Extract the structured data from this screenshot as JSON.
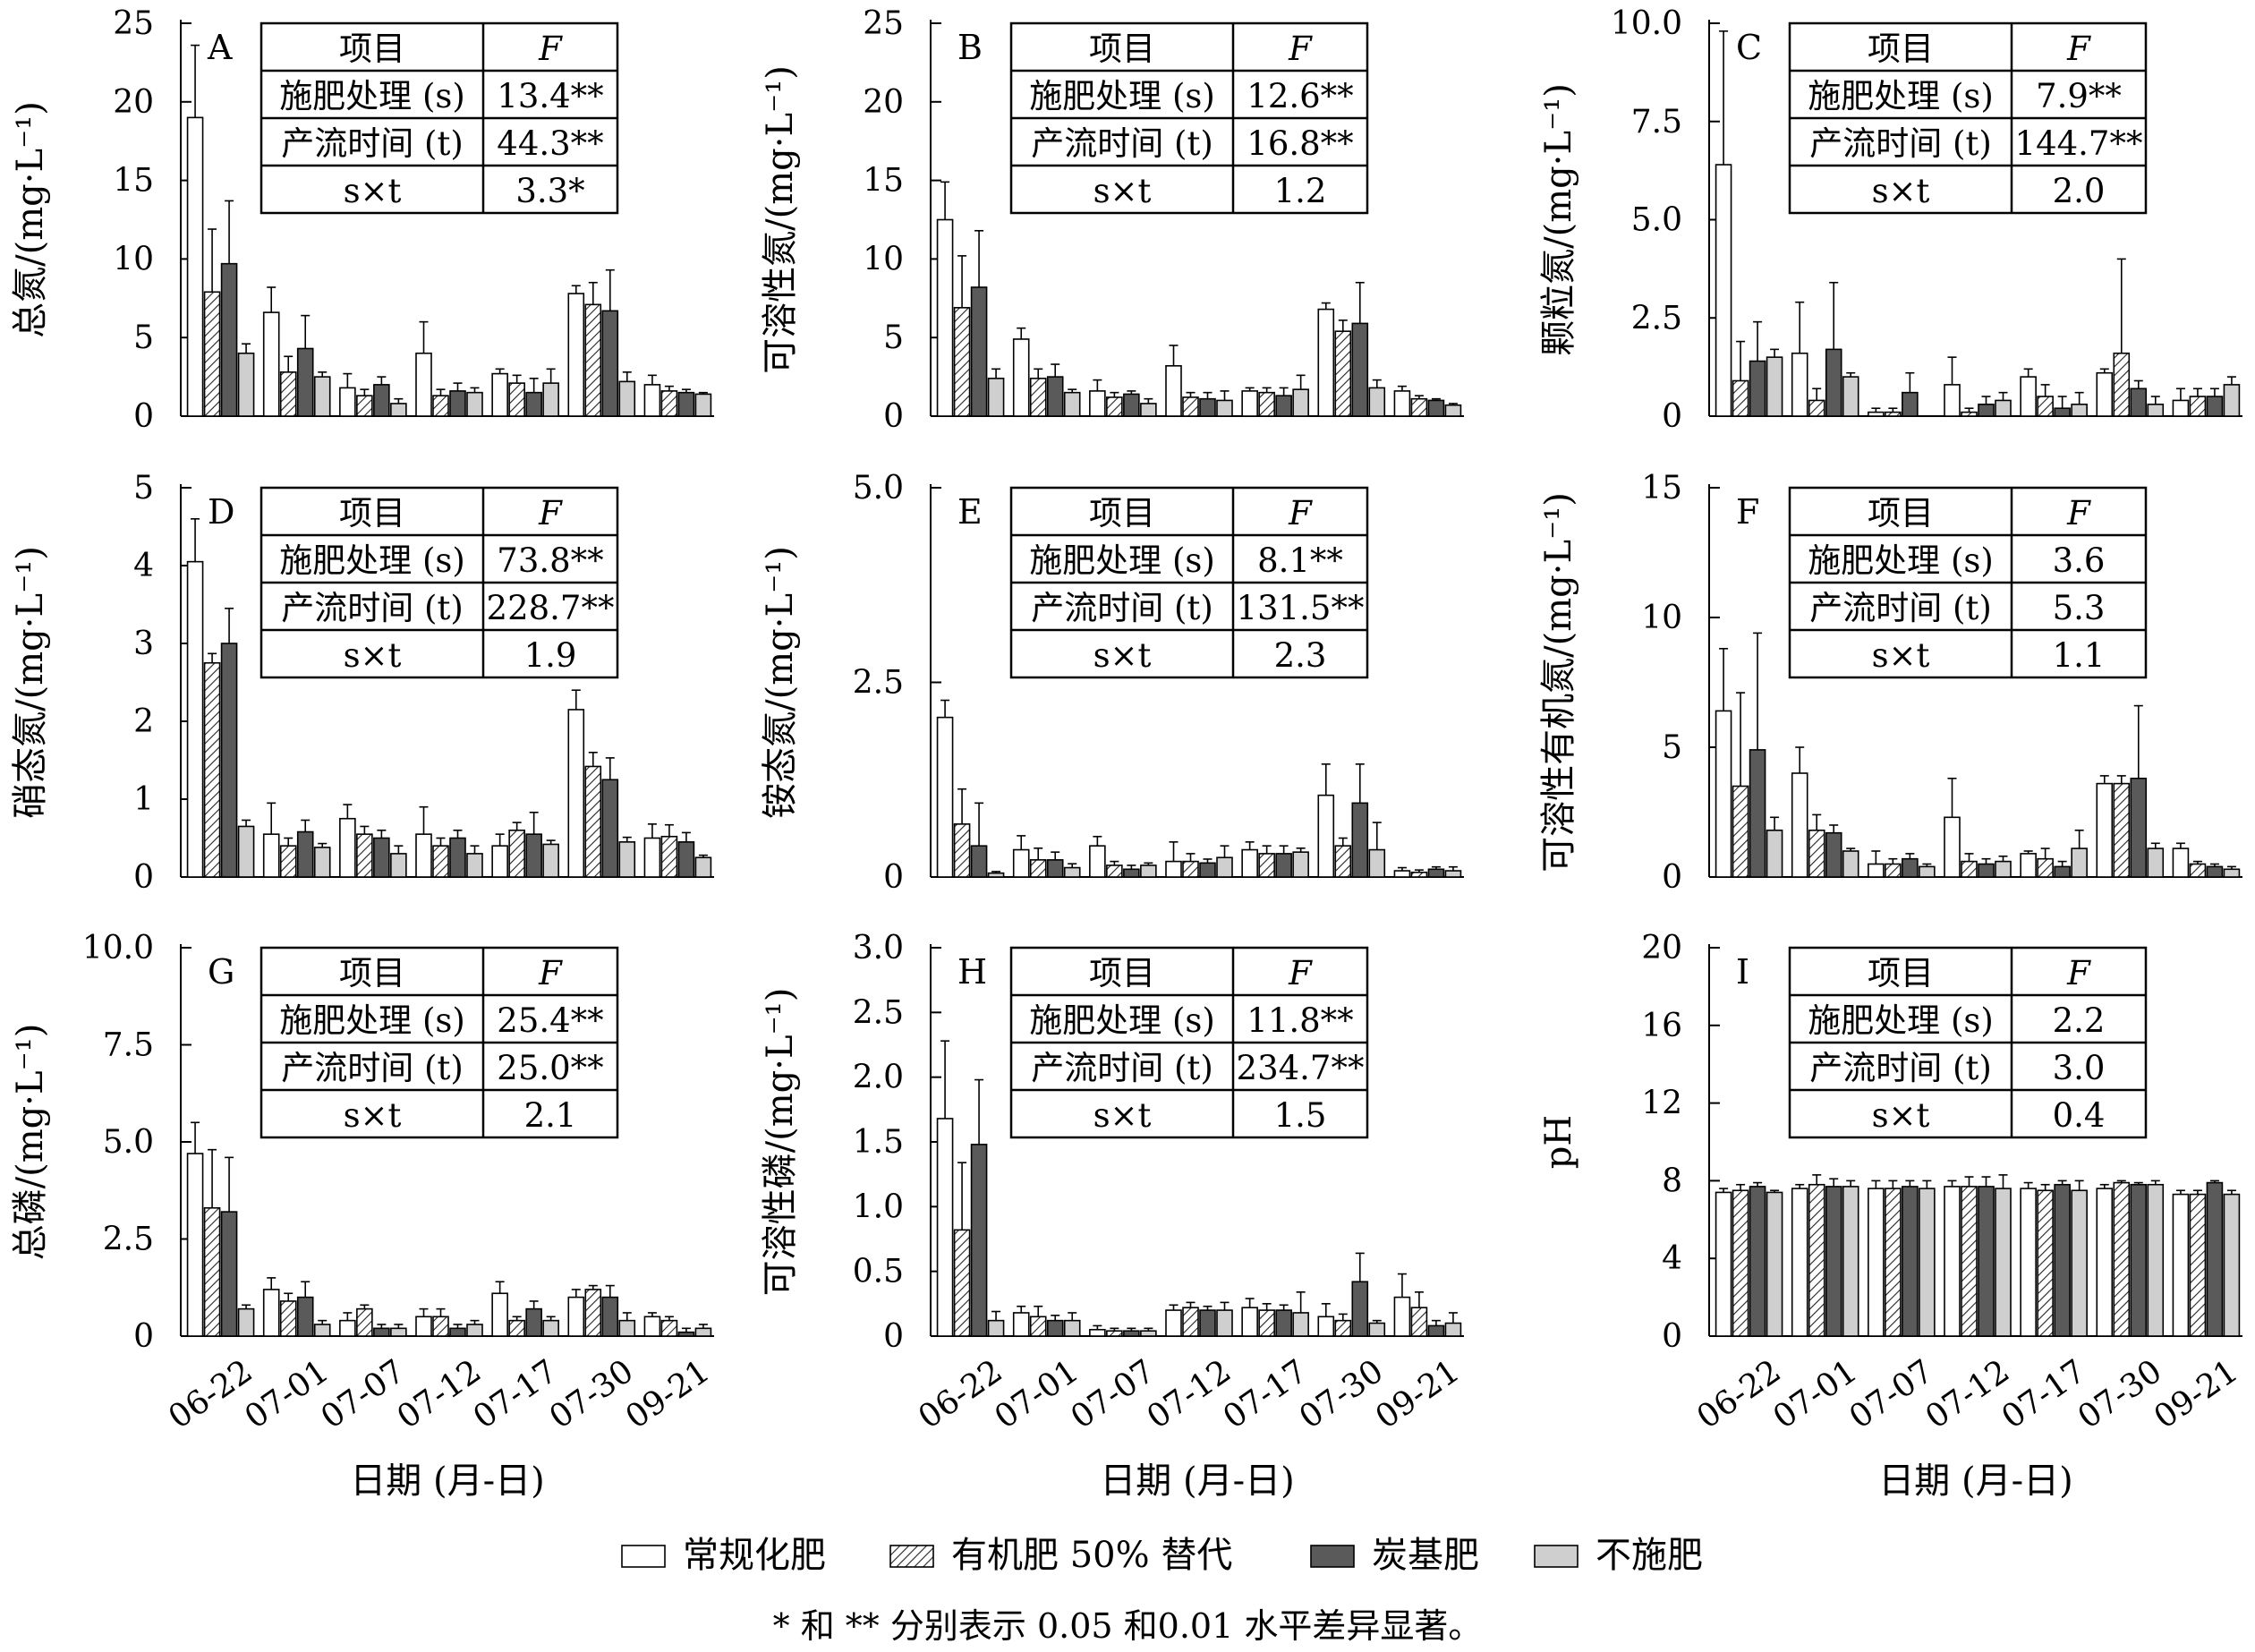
{
  "chart_data": {
    "type": "bar",
    "categories": [
      "06-22",
      "07-01",
      "07-07",
      "07-12",
      "07-17",
      "07-30",
      "09-21"
    ],
    "xlabel": "日期 (月-日)",
    "legend": [
      {
        "name": "常规化肥",
        "fill": "#ffffff",
        "pattern": "none"
      },
      {
        "name": "有机肥 50% 替代",
        "fill": "#ffffff",
        "pattern": "hatch"
      },
      {
        "name": "炭基肥",
        "fill": "#5a5a5a",
        "pattern": "none"
      },
      {
        "name": "不施肥",
        "fill": "#cfcfcf",
        "pattern": "none"
      }
    ],
    "note": "* 和 ** 分别表示 0.05 和0.01 水平差异显著。",
    "table_header": [
      "项目",
      "F"
    ],
    "table_rows": [
      "施肥处理 (s)",
      "产流时间 (t)",
      "s×t"
    ],
    "panels": [
      {
        "letter": "A",
        "ylabel": "总氮/(mg·L⁻¹)",
        "ylim": [
          0,
          25
        ],
        "ticks": [
          "0",
          "5",
          "10",
          "15",
          "20",
          "25"
        ],
        "tickvals": [
          0,
          5,
          10,
          15,
          20,
          25
        ],
        "F": [
          "13.4**",
          "44.3**",
          "3.3*"
        ],
        "series": [
          [
            19.0,
            6.6,
            1.8,
            4.0,
            2.7,
            7.8,
            2.0
          ],
          [
            7.9,
            2.8,
            1.3,
            1.3,
            2.1,
            7.1,
            1.6
          ],
          [
            9.7,
            4.3,
            2.0,
            1.6,
            1.5,
            6.7,
            1.5
          ],
          [
            4.0,
            2.5,
            0.8,
            1.5,
            2.1,
            2.2,
            1.4
          ]
        ],
        "errors": [
          [
            4.6,
            1.6,
            0.9,
            2.0,
            0.3,
            0.5,
            0.6
          ],
          [
            4.0,
            1.0,
            0.4,
            0.4,
            0.5,
            1.4,
            0.3
          ],
          [
            4.0,
            2.1,
            0.5,
            0.5,
            0.9,
            2.6,
            0.2
          ],
          [
            0.6,
            0.3,
            0.3,
            0.3,
            0.9,
            0.6,
            0.1
          ]
        ]
      },
      {
        "letter": "B",
        "ylabel": "可溶性氮/(mg·L⁻¹)",
        "ylim": [
          0,
          25
        ],
        "ticks": [
          "0",
          "5",
          "10",
          "15",
          "20",
          "25"
        ],
        "tickvals": [
          0,
          5,
          10,
          15,
          20,
          25
        ],
        "F": [
          "12.6**",
          "16.8**",
          "1.2"
        ],
        "series": [
          [
            12.5,
            4.9,
            1.6,
            3.2,
            1.6,
            6.8,
            1.6
          ],
          [
            6.9,
            2.4,
            1.2,
            1.2,
            1.5,
            5.4,
            1.1
          ],
          [
            8.2,
            2.5,
            1.4,
            1.1,
            1.3,
            5.9,
            1.0
          ],
          [
            2.4,
            1.5,
            0.8,
            1.0,
            1.7,
            1.8,
            0.7
          ]
        ],
        "errors": [
          [
            2.4,
            0.7,
            0.7,
            1.3,
            0.2,
            0.4,
            0.3
          ],
          [
            3.3,
            0.6,
            0.3,
            0.3,
            0.3,
            0.7,
            0.2
          ],
          [
            3.6,
            0.8,
            0.2,
            0.4,
            0.5,
            2.6,
            0.1
          ],
          [
            0.6,
            0.2,
            0.3,
            0.6,
            0.9,
            0.5,
            0.1
          ]
        ]
      },
      {
        "letter": "C",
        "ylabel": "颗粒氮/(mg·L⁻¹)",
        "ylim": [
          0,
          10
        ],
        "ticks": [
          "0",
          "2.5",
          "5.0",
          "7.5",
          "10.0"
        ],
        "tickvals": [
          0,
          2.5,
          5,
          7.5,
          10
        ],
        "F": [
          "7.9**",
          "144.7**",
          "2.0"
        ],
        "series": [
          [
            6.4,
            1.6,
            0.1,
            0.8,
            1.0,
            1.1,
            0.4
          ],
          [
            0.9,
            0.4,
            0.1,
            0.1,
            0.5,
            1.6,
            0.5
          ],
          [
            1.4,
            1.7,
            0.6,
            0.3,
            0.2,
            0.7,
            0.5
          ],
          [
            1.5,
            1.0,
            0.0,
            0.4,
            0.3,
            0.3,
            0.8
          ]
        ],
        "errors": [
          [
            3.4,
            1.3,
            0.1,
            0.7,
            0.2,
            0.1,
            0.3
          ],
          [
            1.0,
            0.3,
            0.1,
            0.1,
            0.3,
            2.4,
            0.2
          ],
          [
            1.0,
            1.7,
            0.5,
            0.2,
            0.3,
            0.2,
            0.2
          ],
          [
            0.2,
            0.1,
            0.0,
            0.2,
            0.3,
            0.2,
            0.2
          ]
        ]
      },
      {
        "letter": "D",
        "ylabel": "硝态氮/(mg·L⁻¹)",
        "ylim": [
          0,
          5
        ],
        "ticks": [
          "0",
          "1",
          "2",
          "3",
          "4",
          "5"
        ],
        "tickvals": [
          0,
          1,
          2,
          3,
          4,
          5
        ],
        "F": [
          "73.8**",
          "228.7**",
          "1.9"
        ],
        "series": [
          [
            4.05,
            0.55,
            0.75,
            0.55,
            0.4,
            2.15,
            0.5
          ],
          [
            2.75,
            0.4,
            0.55,
            0.4,
            0.6,
            1.42,
            0.52
          ],
          [
            3.0,
            0.58,
            0.5,
            0.5,
            0.55,
            1.25,
            0.45
          ],
          [
            0.65,
            0.38,
            0.3,
            0.3,
            0.42,
            0.45,
            0.25
          ]
        ],
        "errors": [
          [
            0.55,
            0.4,
            0.18,
            0.35,
            0.15,
            0.25,
            0.18
          ],
          [
            0.12,
            0.1,
            0.1,
            0.1,
            0.1,
            0.18,
            0.15
          ],
          [
            0.45,
            0.15,
            0.1,
            0.1,
            0.28,
            0.28,
            0.12
          ],
          [
            0.08,
            0.05,
            0.1,
            0.1,
            0.05,
            0.06,
            0.03
          ]
        ]
      },
      {
        "letter": "E",
        "ylabel": "铵态氮/(mg·L⁻¹)",
        "ylim": [
          0,
          5
        ],
        "ticks": [
          "0",
          "2.5",
          "5.0"
        ],
        "tickvals": [
          0,
          2.5,
          5
        ],
        "F": [
          "8.1**",
          "131.5**",
          "2.3"
        ],
        "series": [
          [
            2.05,
            0.35,
            0.4,
            0.2,
            0.35,
            1.05,
            0.08
          ],
          [
            0.68,
            0.22,
            0.15,
            0.2,
            0.3,
            0.4,
            0.06
          ],
          [
            0.4,
            0.22,
            0.1,
            0.18,
            0.3,
            0.95,
            0.1
          ],
          [
            0.05,
            0.12,
            0.15,
            0.25,
            0.32,
            0.35,
            0.08
          ]
        ],
        "errors": [
          [
            0.22,
            0.18,
            0.12,
            0.25,
            0.1,
            0.4,
            0.04
          ],
          [
            0.45,
            0.15,
            0.05,
            0.1,
            0.1,
            0.1,
            0.03
          ],
          [
            0.55,
            0.1,
            0.05,
            0.05,
            0.1,
            0.5,
            0.03
          ],
          [
            0.02,
            0.05,
            0.03,
            0.15,
            0.05,
            0.35,
            0.05
          ]
        ]
      },
      {
        "letter": "F",
        "ylabel": "可溶性有机氮/(mg·L⁻¹)",
        "ylim": [
          0,
          15
        ],
        "ticks": [
          "0",
          "5",
          "10",
          "15"
        ],
        "tickvals": [
          0,
          5,
          10,
          15
        ],
        "F": [
          "3.6",
          "5.3",
          "1.1"
        ],
        "series": [
          [
            6.4,
            4.0,
            0.5,
            2.3,
            0.9,
            3.6,
            1.1
          ],
          [
            3.5,
            1.8,
            0.5,
            0.6,
            0.7,
            3.6,
            0.5
          ],
          [
            4.9,
            1.7,
            0.7,
            0.5,
            0.4,
            3.8,
            0.4
          ],
          [
            1.8,
            1.0,
            0.4,
            0.6,
            1.1,
            1.1,
            0.3
          ]
        ],
        "errors": [
          [
            2.4,
            1.0,
            0.5,
            1.5,
            0.1,
            0.3,
            0.2
          ],
          [
            3.6,
            0.6,
            0.2,
            0.3,
            0.4,
            0.3,
            0.1
          ],
          [
            4.5,
            0.3,
            0.2,
            0.2,
            0.2,
            2.8,
            0.1
          ],
          [
            0.5,
            0.1,
            0.1,
            0.2,
            0.7,
            0.2,
            0.1
          ]
        ]
      },
      {
        "letter": "G",
        "ylabel": "总磷/(mg·L⁻¹)",
        "ylim": [
          0,
          10
        ],
        "ticks": [
          "0",
          "2.5",
          "5.0",
          "7.5",
          "10.0"
        ],
        "tickvals": [
          0,
          2.5,
          5,
          7.5,
          10
        ],
        "F": [
          "25.4**",
          "25.0**",
          "2.1"
        ],
        "series": [
          [
            4.7,
            1.2,
            0.4,
            0.5,
            1.1,
            1.0,
            0.5
          ],
          [
            3.3,
            0.9,
            0.7,
            0.5,
            0.4,
            1.2,
            0.4
          ],
          [
            3.2,
            1.0,
            0.2,
            0.2,
            0.7,
            1.0,
            0.1
          ],
          [
            0.7,
            0.3,
            0.2,
            0.3,
            0.4,
            0.4,
            0.2
          ]
        ],
        "errors": [
          [
            0.8,
            0.3,
            0.2,
            0.2,
            0.3,
            0.2,
            0.1
          ],
          [
            1.5,
            0.2,
            0.1,
            0.2,
            0.1,
            0.1,
            0.1
          ],
          [
            1.4,
            0.4,
            0.1,
            0.1,
            0.2,
            0.3,
            0.1
          ],
          [
            0.1,
            0.1,
            0.1,
            0.1,
            0.1,
            0.2,
            0.1
          ]
        ]
      },
      {
        "letter": "H",
        "ylabel": "可溶性磷/(mg·L⁻¹)",
        "ylim": [
          0,
          3
        ],
        "ticks": [
          "0",
          "0.5",
          "1.0",
          "1.5",
          "2.0",
          "2.5",
          "3.0"
        ],
        "tickvals": [
          0,
          0.5,
          1,
          1.5,
          2,
          2.5,
          3
        ],
        "F": [
          "11.8**",
          "234.7**",
          "1.5"
        ],
        "series": [
          [
            1.68,
            0.18,
            0.05,
            0.2,
            0.22,
            0.15,
            0.3
          ],
          [
            0.82,
            0.15,
            0.04,
            0.22,
            0.2,
            0.12,
            0.22
          ],
          [
            1.48,
            0.12,
            0.04,
            0.2,
            0.2,
            0.42,
            0.08
          ],
          [
            0.12,
            0.12,
            0.04,
            0.2,
            0.18,
            0.1,
            0.1
          ]
        ],
        "errors": [
          [
            0.6,
            0.05,
            0.03,
            0.04,
            0.07,
            0.1,
            0.18
          ],
          [
            0.52,
            0.08,
            0.02,
            0.04,
            0.05,
            0.05,
            0.12
          ],
          [
            0.5,
            0.04,
            0.02,
            0.03,
            0.04,
            0.22,
            0.04
          ],
          [
            0.07,
            0.06,
            0.02,
            0.06,
            0.16,
            0.02,
            0.08
          ]
        ]
      },
      {
        "letter": "I",
        "ylabel": "pH",
        "ylim": [
          0,
          20
        ],
        "ticks": [
          "0",
          "4",
          "8",
          "12",
          "16",
          "20"
        ],
        "tickvals": [
          0,
          4,
          8,
          12,
          16,
          20
        ],
        "F": [
          "2.2",
          "3.0",
          "0.4"
        ],
        "series": [
          [
            7.4,
            7.6,
            7.6,
            7.7,
            7.6,
            7.6,
            7.3
          ],
          [
            7.5,
            7.8,
            7.6,
            7.7,
            7.5,
            7.9,
            7.3
          ],
          [
            7.7,
            7.7,
            7.7,
            7.7,
            7.8,
            7.8,
            7.9
          ],
          [
            7.4,
            7.7,
            7.6,
            7.6,
            7.5,
            7.8,
            7.3
          ]
        ],
        "errors": [
          [
            0.2,
            0.2,
            0.4,
            0.3,
            0.3,
            0.2,
            0.2
          ],
          [
            0.3,
            0.5,
            0.4,
            0.5,
            0.3,
            0.1,
            0.2
          ],
          [
            0.2,
            0.4,
            0.3,
            0.5,
            0.2,
            0.1,
            0.1
          ],
          [
            0.1,
            0.3,
            0.4,
            0.7,
            0.5,
            0.2,
            0.2
          ]
        ]
      }
    ]
  }
}
